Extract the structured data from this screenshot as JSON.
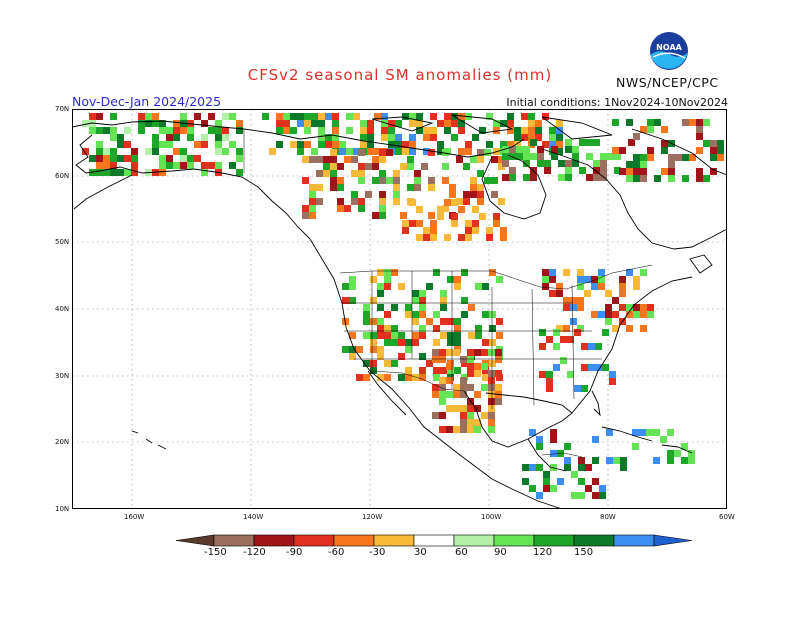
{
  "title": "CFSv2 seasonal SM anomalies (mm)",
  "period": "Nov-Dec-Jan 2024/2025",
  "initial_conditions": "Initial conditions: 1Nov2024-10Nov2024",
  "agency": "NWS/NCEP/CPC",
  "logo_text": "NOAA",
  "lat_labels": [
    "70N",
    "60N",
    "50N",
    "40N",
    "30N",
    "20N",
    "10N"
  ],
  "lon_labels": [
    "160W",
    "140W",
    "120W",
    "100W",
    "80W",
    "60W"
  ],
  "colorbar": {
    "labels": [
      "-150",
      "-120",
      "-90",
      "-60",
      "-30",
      "30",
      "60",
      "90",
      "120",
      "150"
    ],
    "colors": [
      "#5a3a2c",
      "#9c7060",
      "#a0141a",
      "#e0301e",
      "#f5761e",
      "#f9b938",
      "#ffffff",
      "#b4f0a8",
      "#64e454",
      "#1ea628",
      "#0c7a2a",
      "#3c8ef0",
      "#2060d0"
    ]
  },
  "map": {
    "lat_range": [
      10,
      70
    ],
    "lon_range": [
      -170,
      -60
    ],
    "grid": true
  }
}
